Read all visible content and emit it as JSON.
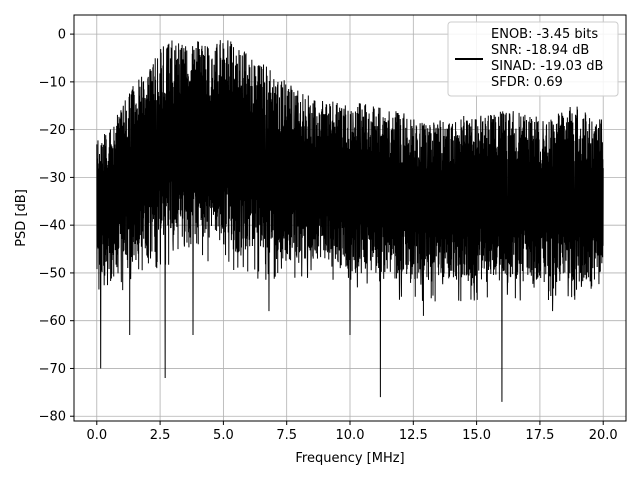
{
  "chart_data": {
    "type": "line",
    "title": "",
    "xlabel": "Frequency [MHz]",
    "ylabel": "PSD [dB]",
    "xlim": [
      -0.9,
      20.9
    ],
    "ylim": [
      -81,
      4
    ],
    "xticks": [
      0.0,
      2.5,
      5.0,
      7.5,
      10.0,
      12.5,
      15.0,
      17.5,
      20.0
    ],
    "xtick_labels": [
      "0.0",
      "2.5",
      "5.0",
      "7.5",
      "10.0",
      "12.5",
      "15.0",
      "17.5",
      "20.0"
    ],
    "yticks": [
      0,
      -10,
      -20,
      -30,
      -40,
      -50,
      -60,
      -70,
      -80
    ],
    "ytick_labels": [
      "0",
      "−10",
      "−20",
      "−30",
      "−40",
      "−50",
      "−60",
      "−70",
      "−80"
    ],
    "grid": true,
    "legend_position": "top-right",
    "legend_entries": [
      "ENOB: -3.45 bits",
      "SNR: -18.94 dB",
      "SINAD: -19.03 dB",
      "SFDR: 0.69"
    ],
    "line_color": "#000000",
    "envelope": {
      "x": [
        0,
        0.5,
        1,
        1.5,
        2,
        2.5,
        3,
        3.5,
        4,
        4.5,
        5,
        5.5,
        6,
        6.5,
        7,
        7.5,
        8,
        8.5,
        9,
        9.5,
        10,
        10.5,
        11,
        11.5,
        12,
        12.5,
        13,
        13.5,
        14,
        14.5,
        15,
        15.5,
        16,
        16.5,
        17,
        17.5,
        18,
        18.5,
        19,
        19.5,
        20
      ],
      "upper": [
        -22,
        -20,
        -15,
        -10,
        -8,
        -3,
        -1,
        -2,
        -1,
        -3,
        0,
        -2,
        -4,
        -6,
        -8,
        -10,
        -12,
        -13,
        -14,
        -14,
        -15,
        -14,
        -15,
        -16,
        -16,
        -17,
        -18,
        -18,
        -18,
        -17,
        -17,
        -17,
        -16,
        -16,
        -17,
        -17,
        -18,
        -15,
        -15,
        -17,
        -18
      ],
      "lower": [
        -50,
        -52,
        -50,
        -48,
        -47,
        -45,
        -44,
        -44,
        -44,
        -44,
        -44,
        -46,
        -46,
        -48,
        -48,
        -48,
        -48,
        -48,
        -48,
        -48,
        -50,
        -50,
        -50,
        -52,
        -52,
        -52,
        -52,
        -52,
        -52,
        -52,
        -52,
        -52,
        -52,
        -52,
        -52,
        -52,
        -52,
        -52,
        -52,
        -52,
        -50
      ]
    },
    "notable_dips": [
      {
        "x": 0.15,
        "y": -70
      },
      {
        "x": 1.3,
        "y": -63
      },
      {
        "x": 2.7,
        "y": -72
      },
      {
        "x": 3.8,
        "y": -63
      },
      {
        "x": 6.8,
        "y": -58
      },
      {
        "x": 10.0,
        "y": -63
      },
      {
        "x": 11.2,
        "y": -76
      },
      {
        "x": 12.9,
        "y": -59
      },
      {
        "x": 16.0,
        "y": -77
      },
      {
        "x": 18.0,
        "y": -58
      }
    ]
  }
}
